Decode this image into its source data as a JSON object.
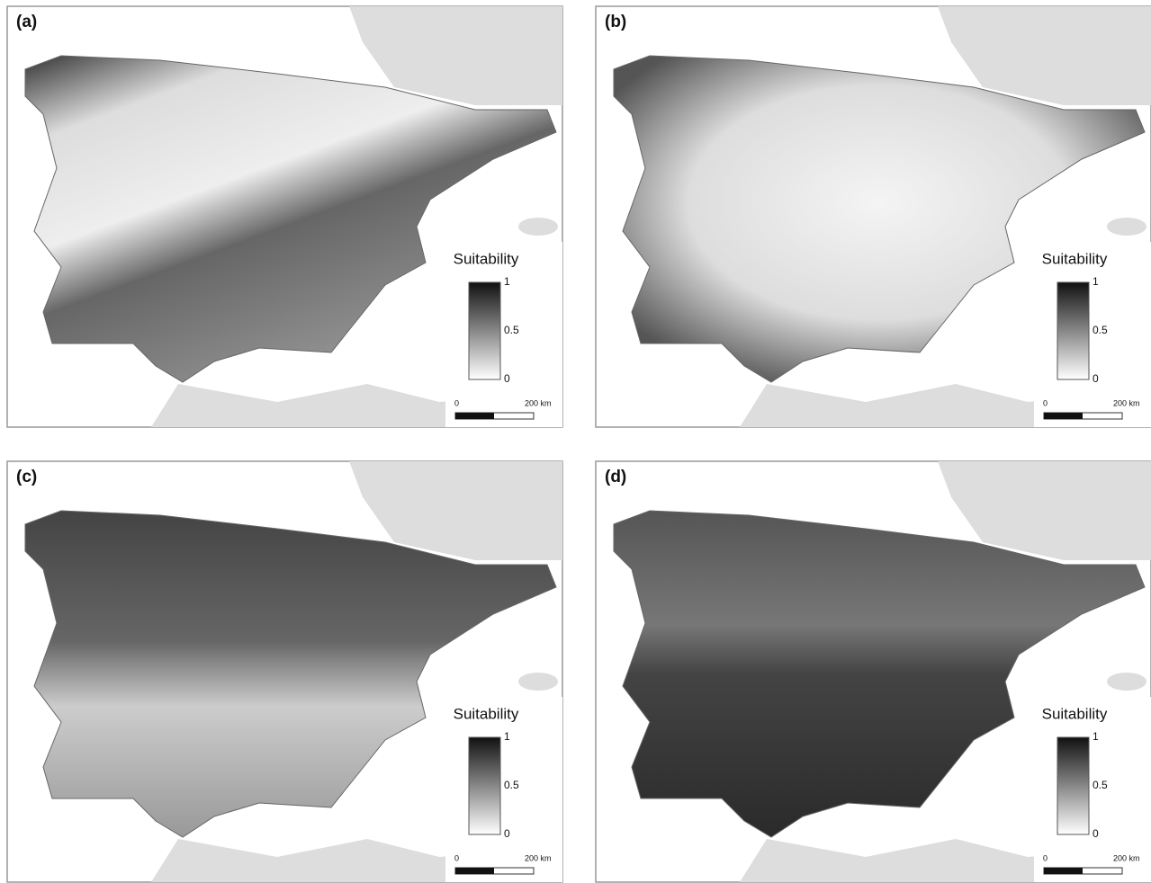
{
  "panels": [
    {
      "label": "(a)",
      "legend": {
        "title": "Suitability",
        "ticks": [
          1,
          0.5,
          0
        ]
      },
      "scale_bar": {
        "start": 0,
        "end": "200 km"
      }
    },
    {
      "label": "(b)",
      "legend": {
        "title": "Suitability",
        "ticks": [
          1,
          0.5,
          0
        ]
      },
      "scale_bar": {
        "start": 0,
        "end": "200 km"
      }
    },
    {
      "label": "(c)",
      "legend": {
        "title": "Suitability",
        "ticks": [
          1,
          0.5,
          0
        ]
      },
      "scale_bar": {
        "start": 0,
        "end": "200 km"
      }
    },
    {
      "label": "(d)",
      "legend": {
        "title": "Suitability",
        "ticks": [
          1,
          0.5,
          0
        ]
      },
      "scale_bar": {
        "start": 0,
        "end": "200 km"
      }
    }
  ]
}
